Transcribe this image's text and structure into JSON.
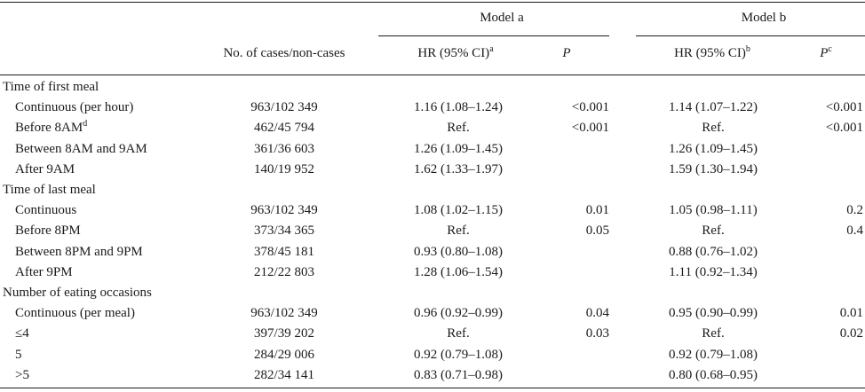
{
  "header": {
    "model_a": "Model a",
    "model_b": "Model b",
    "cases_col": "No. of cases/non-cases",
    "hr_a": "HR (95% CI)",
    "hr_a_sup": "a",
    "p_a": "P",
    "hr_b": "HR (95% CI)",
    "hr_b_sup": "b",
    "p_b": "P",
    "p_b_sup": "c"
  },
  "rows": [
    {
      "label": "Time of first meal",
      "label_sup": "",
      "indent": false,
      "cases": "",
      "hr_a": "",
      "p_a": "",
      "hr_b": "",
      "p_b": ""
    },
    {
      "label": "Continuous (per hour)",
      "label_sup": "",
      "indent": true,
      "cases": "963/102 349",
      "hr_a": "1.16 (1.08–1.24)",
      "p_a": "<0.001",
      "hr_b": "1.14 (1.07–1.22)",
      "p_b": "<0.001"
    },
    {
      "label": "Before 8AM",
      "label_sup": "d",
      "indent": true,
      "cases": "462/45 794",
      "hr_a": "Ref.",
      "p_a": "<0.001",
      "hr_b": "Ref.",
      "p_b": "<0.001"
    },
    {
      "label": "Between 8AM and 9AM",
      "label_sup": "",
      "indent": true,
      "cases": "361/36 603",
      "hr_a": "1.26 (1.09–1.45)",
      "p_a": "",
      "hr_b": "1.26 (1.09–1.45)",
      "p_b": ""
    },
    {
      "label": "After 9AM",
      "label_sup": "",
      "indent": true,
      "cases": "140/19 952",
      "hr_a": "1.62 (1.33–1.97)",
      "p_a": "",
      "hr_b": "1.59 (1.30–1.94)",
      "p_b": ""
    },
    {
      "label": "Time of last meal",
      "label_sup": "",
      "indent": false,
      "cases": "",
      "hr_a": "",
      "p_a": "",
      "hr_b": "",
      "p_b": ""
    },
    {
      "label": "Continuous",
      "label_sup": "",
      "indent": true,
      "cases": "963/102 349",
      "hr_a": "1.08 (1.02–1.15)",
      "p_a": "0.01",
      "hr_b": "1.05 (0.98–1.11)",
      "p_b": "0.2"
    },
    {
      "label": "Before 8PM",
      "label_sup": "",
      "indent": true,
      "cases": "373/34 365",
      "hr_a": "Ref.",
      "p_a": "0.05",
      "hr_b": "Ref.",
      "p_b": "0.4"
    },
    {
      "label": "Between 8PM and 9PM",
      "label_sup": "",
      "indent": true,
      "cases": "378/45 181",
      "hr_a": "0.93 (0.80–1.08)",
      "p_a": "",
      "hr_b": "0.88 (0.76–1.02)",
      "p_b": ""
    },
    {
      "label": "After 9PM",
      "label_sup": "",
      "indent": true,
      "cases": "212/22 803",
      "hr_a": "1.28 (1.06–1.54)",
      "p_a": "",
      "hr_b": "1.11 (0.92–1.34)",
      "p_b": ""
    },
    {
      "label": "Number of eating occasions",
      "label_sup": "",
      "indent": false,
      "cases": "",
      "hr_a": "",
      "p_a": "",
      "hr_b": "",
      "p_b": ""
    },
    {
      "label": "Continuous (per meal)",
      "label_sup": "",
      "indent": true,
      "cases": "963/102 349",
      "hr_a": "0.96 (0.92–0.99)",
      "p_a": "0.04",
      "hr_b": "0.95 (0.90–0.99)",
      "p_b": "0.01"
    },
    {
      "label": "≤4",
      "label_sup": "",
      "indent": true,
      "cases": "397/39 202",
      "hr_a": "Ref.",
      "p_a": "0.03",
      "hr_b": "Ref.",
      "p_b": "0.02"
    },
    {
      "label": "5",
      "label_sup": "",
      "indent": true,
      "cases": "284/29 006",
      "hr_a": "0.92 (0.79–1.08)",
      "p_a": "",
      "hr_b": "0.92 (0.79–1.08)",
      "p_b": ""
    },
    {
      "label": ">5",
      "label_sup": "",
      "indent": true,
      "cases": "282/34 141",
      "hr_a": "0.83 (0.71–0.98)",
      "p_a": "",
      "hr_b": "0.80 (0.68–0.95)",
      "p_b": ""
    }
  ]
}
